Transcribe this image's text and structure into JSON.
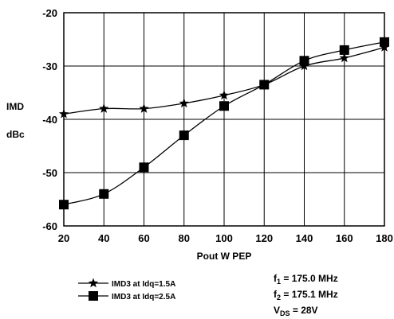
{
  "chart_data": {
    "type": "line",
    "xlabel": "Pout W PEP",
    "ylabel": [
      "IMD",
      "dBc"
    ],
    "xlim": [
      20,
      180
    ],
    "ylim": [
      -60,
      -20
    ],
    "xticks": [
      "20",
      "40",
      "60",
      "80",
      "100",
      "120",
      "140",
      "160",
      "180"
    ],
    "yticks": [
      "-20",
      "-30",
      "-40",
      "-50",
      "-60"
    ],
    "grid": true,
    "legend_placement": "bottom-left",
    "series": [
      {
        "name": "IMD3 at Idq=1.5A",
        "marker": "star",
        "x": [
          20,
          40,
          60,
          80,
          100,
          120,
          140,
          160,
          180
        ],
        "y": [
          -39,
          -38,
          -38,
          -37,
          -35.5,
          -33.5,
          -30,
          -28.5,
          -26.5
        ]
      },
      {
        "name": "IMD3 at Idq=2.5A",
        "marker": "square",
        "x": [
          20,
          40,
          60,
          80,
          100,
          120,
          140,
          160,
          180
        ],
        "y": [
          -56,
          -54,
          -49,
          -43,
          -37.5,
          -33.5,
          -29,
          -27,
          -25.5
        ]
      }
    ],
    "annotations": [
      {
        "base": "f",
        "sub": "1",
        "value": " = 175.0 MHz"
      },
      {
        "base": "f",
        "sub": "2",
        "value": " = 175.1 MHz"
      },
      {
        "base": "V",
        "sub": "DS",
        "value": " = 28V"
      }
    ]
  }
}
